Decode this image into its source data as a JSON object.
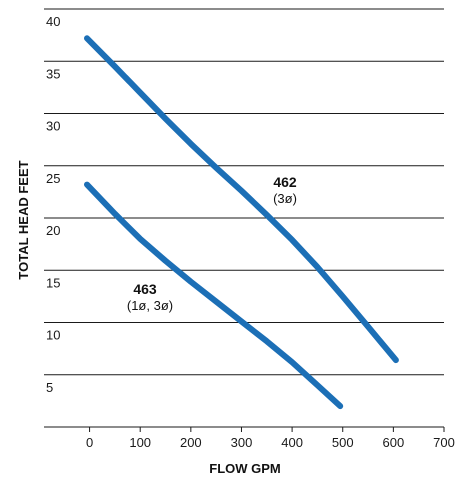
{
  "chart_data": {
    "type": "line",
    "title": "",
    "xlabel": "FLOW GPM",
    "ylabel": "TOTAL HEAD FEET",
    "xlim": [
      -90,
      700
    ],
    "ylim": [
      0,
      40
    ],
    "x_ticks": [
      "0",
      "100",
      "200",
      "300",
      "400",
      "500",
      "600",
      "700"
    ],
    "y_ticks": [
      "5",
      "10",
      "15",
      "20",
      "25",
      "30",
      "35",
      "40"
    ],
    "grid": "horizontal",
    "line_color": "#1c6fb6",
    "series": [
      {
        "name": "462",
        "sublabel": "(3ø)",
        "x": [
          -5,
          50,
          100,
          150,
          200,
          250,
          300,
          350,
          400,
          450,
          500,
          550,
          605
        ],
        "y": [
          37.2,
          34.5,
          32,
          29.5,
          27.1,
          24.8,
          22.6,
          20.3,
          17.9,
          15.3,
          12.5,
          9.6,
          6.4
        ]
      },
      {
        "name": "463",
        "sublabel": "(1ø, 3ø)",
        "x": [
          -5,
          50,
          100,
          150,
          200,
          250,
          300,
          350,
          400,
          450,
          495
        ],
        "y": [
          23.2,
          20.4,
          18.0,
          15.9,
          13.9,
          12.0,
          10.1,
          8.2,
          6.2,
          4.0,
          2.0
        ]
      }
    ]
  }
}
